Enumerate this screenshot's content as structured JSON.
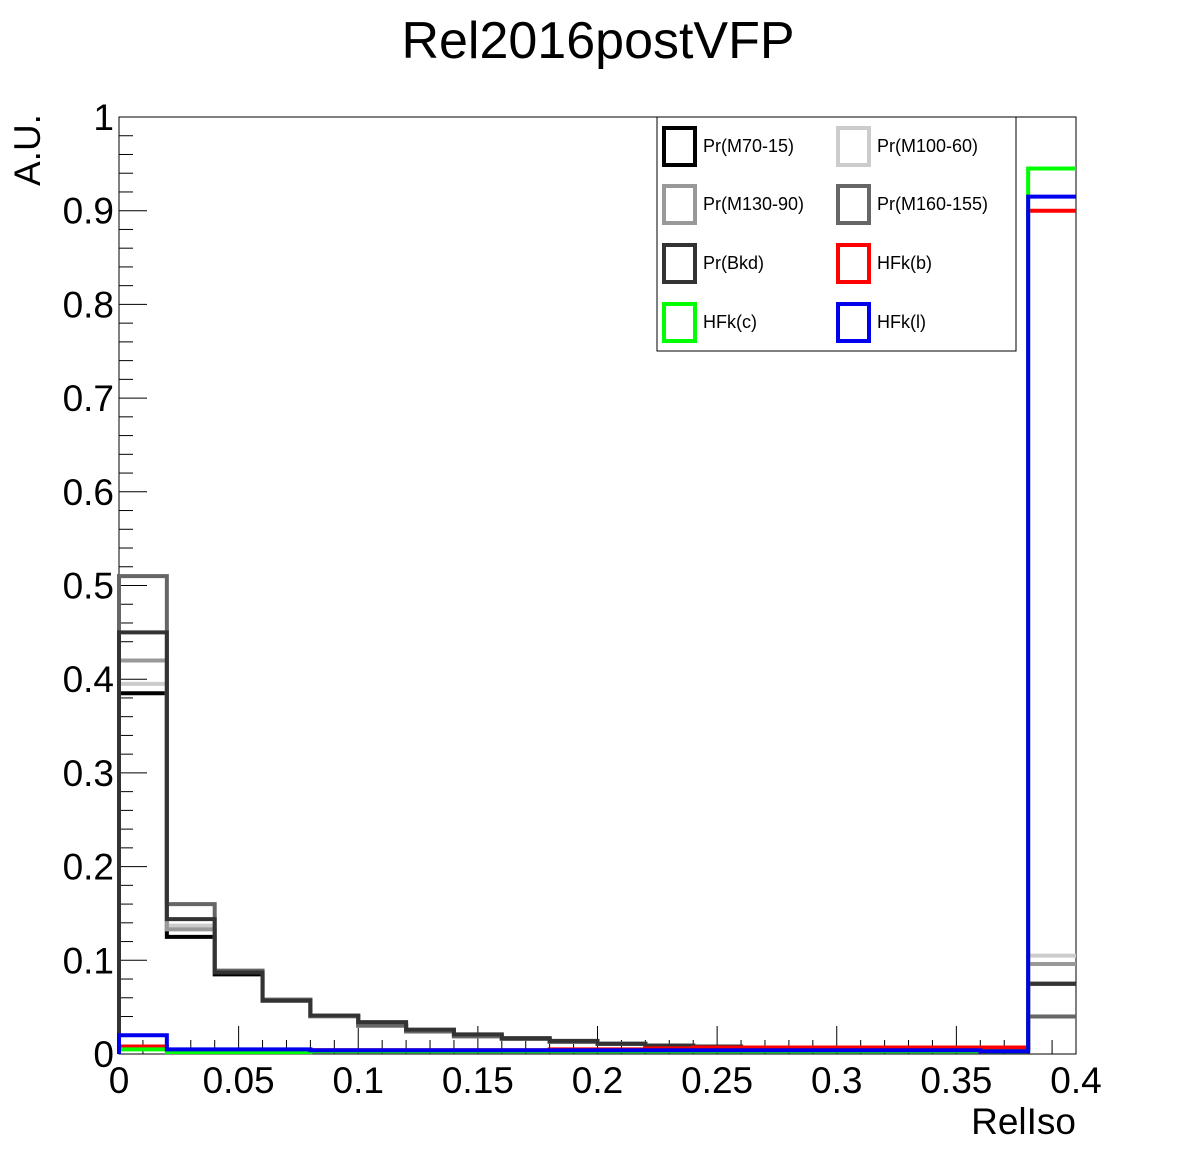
{
  "chart_data": {
    "type": "line",
    "title": "Rel2016postVFP",
    "xlabel": "RelIso",
    "ylabel": "A.U.",
    "xlim": [
      0,
      0.4
    ],
    "ylim": [
      0,
      1
    ],
    "xticks": [
      "0",
      "0.05",
      "0.1",
      "0.15",
      "0.2",
      "0.25",
      "0.3",
      "0.35",
      "0.4"
    ],
    "yticks": [
      "0",
      "0.1",
      "0.2",
      "0.3",
      "0.4",
      "0.5",
      "0.6",
      "0.7",
      "0.8",
      "0.9",
      "1"
    ],
    "grid": false,
    "legend_position": "top-right",
    "bin_edges": [
      0,
      0.02,
      0.04,
      0.06,
      0.08,
      0.1,
      0.12,
      0.14,
      0.16,
      0.18,
      0.2,
      0.22,
      0.24,
      0.26,
      0.28,
      0.3,
      0.32,
      0.34,
      0.36,
      0.38,
      0.4
    ],
    "series": [
      {
        "name": "Pr(M70-15)",
        "color": "#000000",
        "values": [
          0.385,
          0.125,
          0.085,
          0.057,
          0.04,
          0.03,
          0.024,
          0.019,
          0.016,
          0.013,
          0.011,
          0.009,
          0.008,
          0.007,
          0.006,
          0.006,
          0.005,
          0.005,
          0.005,
          0.075
        ]
      },
      {
        "name": "Pr(M100-60)",
        "color": "#cccccc",
        "values": [
          0.395,
          0.137,
          0.088,
          0.058,
          0.041,
          0.031,
          0.024,
          0.019,
          0.016,
          0.013,
          0.011,
          0.009,
          0.008,
          0.007,
          0.006,
          0.006,
          0.005,
          0.005,
          0.005,
          0.105
        ]
      },
      {
        "name": "Pr(M130-90)",
        "color": "#999999",
        "values": [
          0.42,
          0.133,
          0.087,
          0.057,
          0.04,
          0.03,
          0.024,
          0.019,
          0.016,
          0.013,
          0.011,
          0.009,
          0.008,
          0.007,
          0.006,
          0.006,
          0.005,
          0.005,
          0.005,
          0.096
        ]
      },
      {
        "name": "Pr(M160-155)",
        "color": "#666666",
        "values": [
          0.51,
          0.16,
          0.089,
          0.058,
          0.041,
          0.031,
          0.024,
          0.019,
          0.016,
          0.013,
          0.011,
          0.009,
          0.008,
          0.007,
          0.006,
          0.006,
          0.005,
          0.005,
          0.005,
          0.04
        ]
      },
      {
        "name": "Pr(Bkd)",
        "color": "#333333",
        "values": [
          0.45,
          0.144,
          0.087,
          0.057,
          0.041,
          0.034,
          0.026,
          0.021,
          0.017,
          0.014,
          0.011,
          0.009,
          0.008,
          0.007,
          0.006,
          0.006,
          0.005,
          0.005,
          0.005,
          0.075
        ]
      },
      {
        "name": "HFk(b)",
        "color": "#ff0000",
        "values": [
          0.008,
          0.004,
          0.004,
          0.004,
          0.004,
          0.004,
          0.004,
          0.004,
          0.004,
          0.005,
          0.005,
          0.006,
          0.007,
          0.007,
          0.007,
          0.007,
          0.007,
          0.007,
          0.007,
          0.9
        ]
      },
      {
        "name": "HFk(c)",
        "color": "#00ff00",
        "values": [
          0.005,
          0.002,
          0.002,
          0.002,
          0.003,
          0.003,
          0.003,
          0.003,
          0.003,
          0.003,
          0.003,
          0.003,
          0.003,
          0.003,
          0.003,
          0.003,
          0.003,
          0.003,
          0.003,
          0.945
        ]
      },
      {
        "name": "HFk(l)",
        "color": "#0000ee",
        "values": [
          0.02,
          0.005,
          0.005,
          0.005,
          0.004,
          0.004,
          0.004,
          0.004,
          0.004,
          0.004,
          0.004,
          0.004,
          0.004,
          0.004,
          0.004,
          0.004,
          0.004,
          0.004,
          0.003,
          0.915
        ]
      }
    ]
  }
}
